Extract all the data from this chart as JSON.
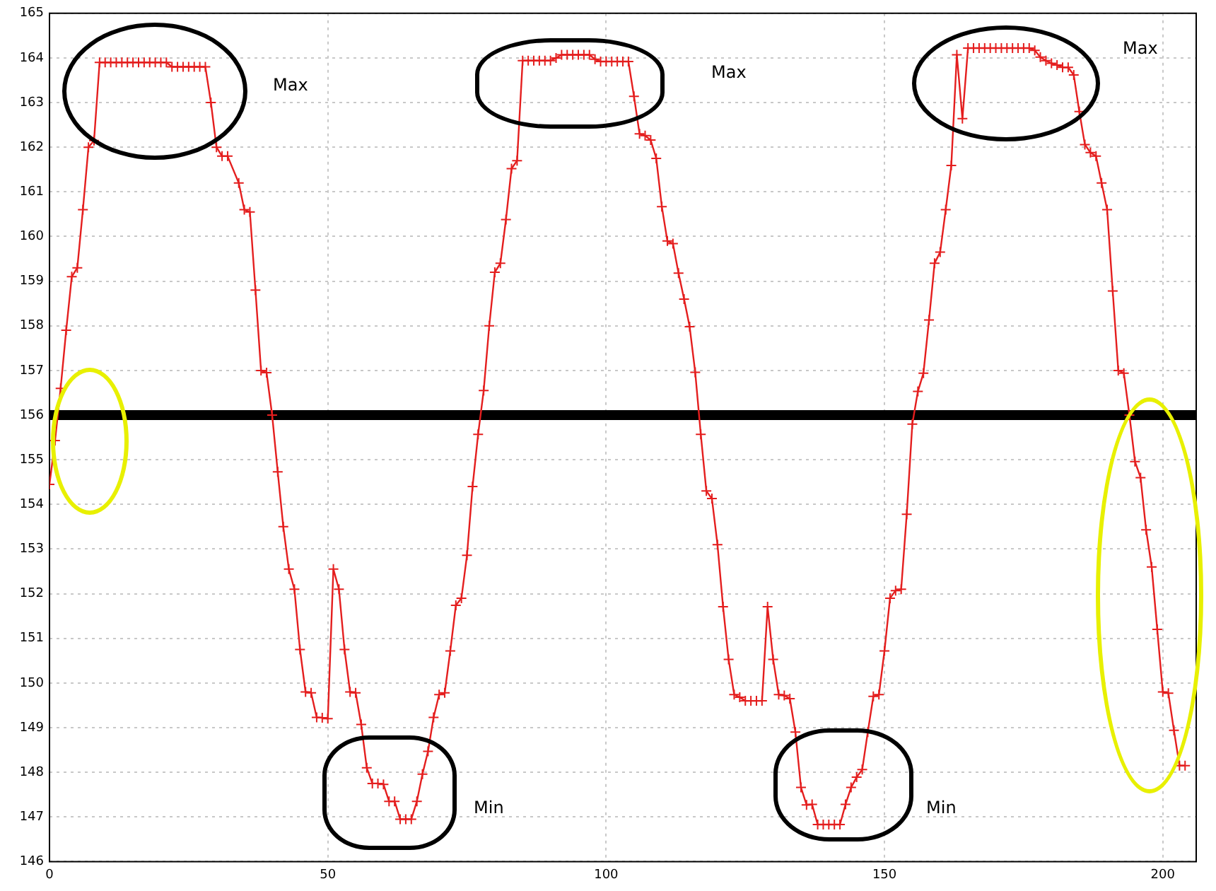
{
  "chart_data": {
    "type": "line",
    "marker": "cross",
    "grid": true,
    "legend": false,
    "xlim": [
      0,
      206
    ],
    "xticks": [
      0,
      50,
      100,
      150,
      200
    ],
    "ylim": [
      146,
      165
    ],
    "yticks": [
      146,
      147,
      148,
      149,
      150,
      151,
      152,
      153,
      154,
      155,
      156,
      157,
      158,
      159,
      160,
      161,
      162,
      163,
      164,
      165
    ],
    "ref_lines": [
      {
        "axis": "y",
        "value": 156,
        "color": "#000000"
      }
    ],
    "annotations": [
      "Max",
      "Max",
      "Max",
      "Min",
      "Min"
    ],
    "series": [
      {
        "color": "#e41e1e",
        "x": [
          0,
          1,
          2,
          3,
          4,
          5,
          6,
          7,
          8,
          9,
          10,
          11,
          12,
          13,
          14,
          15,
          16,
          17,
          18,
          19,
          20,
          21,
          22,
          23,
          24,
          25,
          26,
          27,
          28,
          29,
          30,
          31,
          32,
          34,
          35,
          36,
          37,
          38,
          39,
          40,
          41,
          42,
          43,
          44,
          45,
          46,
          47,
          48,
          49,
          50,
          51,
          52,
          53,
          54,
          55,
          56,
          57,
          58,
          59,
          60,
          61,
          62,
          63,
          64,
          65,
          66,
          67,
          68,
          69,
          70,
          71,
          72,
          73,
          74,
          75,
          76,
          77,
          78,
          79,
          80,
          81,
          82,
          83,
          84,
          85,
          86,
          87,
          88,
          89,
          90,
          91,
          92,
          93,
          94,
          95,
          96,
          97,
          98,
          99,
          100,
          101,
          102,
          103,
          104,
          105,
          106,
          107,
          108,
          109,
          110,
          111,
          112,
          113,
          114,
          115,
          116,
          117,
          118,
          119,
          120,
          121,
          122,
          123,
          124,
          125,
          126,
          127,
          128,
          129,
          130,
          131,
          132,
          133,
          134,
          135,
          136,
          137,
          138,
          139,
          140,
          141,
          142,
          143,
          144,
          145,
          146,
          147,
          148,
          149,
          150,
          151,
          152,
          153,
          154,
          155,
          156,
          157,
          158,
          159,
          160,
          161,
          162,
          163,
          164,
          165,
          166,
          167,
          168,
          169,
          170,
          171,
          172,
          173,
          174,
          175,
          176,
          177,
          178,
          179,
          180,
          181,
          182,
          183,
          184,
          185,
          186,
          187,
          188,
          189,
          190,
          191,
          192,
          193,
          194,
          195,
          196,
          197,
          198,
          199,
          200,
          201,
          202,
          203,
          204
        ],
        "values": [
          154.45,
          155.43,
          156.6,
          157.9,
          159.1,
          159.3,
          160.6,
          162.0,
          162.15,
          163.9,
          163.9,
          163.9,
          163.9,
          163.9,
          163.9,
          163.9,
          163.9,
          163.9,
          163.9,
          163.9,
          163.9,
          163.9,
          163.8,
          163.8,
          163.8,
          163.8,
          163.8,
          163.8,
          163.8,
          163.0,
          162.0,
          161.8,
          161.8,
          161.2,
          160.6,
          160.55,
          158.8,
          157.0,
          156.95,
          156.0,
          154.73,
          153.5,
          152.55,
          152.1,
          150.75,
          149.8,
          149.78,
          149.23,
          149.22,
          149.2,
          152.55,
          152.1,
          150.75,
          149.8,
          149.78,
          149.07,
          148.1,
          147.75,
          147.75,
          147.73,
          147.35,
          147.35,
          146.95,
          146.95,
          146.95,
          147.35,
          147.96,
          148.47,
          149.23,
          149.74,
          149.78,
          150.72,
          151.74,
          151.9,
          152.86,
          154.4,
          155.57,
          156.55,
          158.0,
          159.2,
          159.4,
          160.38,
          161.52,
          161.7,
          163.94,
          163.94,
          163.94,
          163.94,
          163.94,
          163.94,
          164.0,
          164.07,
          164.07,
          164.07,
          164.07,
          164.07,
          164.07,
          163.97,
          163.92,
          163.92,
          163.92,
          163.92,
          163.92,
          163.92,
          163.14,
          162.3,
          162.26,
          162.16,
          161.75,
          160.67,
          159.9,
          159.84,
          159.18,
          158.6,
          157.98,
          156.96,
          155.57,
          154.3,
          154.13,
          153.1,
          151.71,
          150.53,
          149.74,
          149.68,
          149.6,
          149.6,
          149.6,
          149.6,
          151.71,
          150.53,
          149.74,
          149.72,
          149.65,
          148.9,
          147.66,
          147.27,
          147.28,
          146.83,
          146.83,
          146.83,
          146.83,
          146.83,
          147.28,
          147.66,
          147.89,
          148.06,
          148.9,
          149.7,
          149.74,
          150.72,
          151.9,
          152.07,
          152.1,
          153.78,
          155.8,
          156.53,
          156.94,
          158.13,
          159.4,
          159.65,
          160.6,
          161.59,
          164.07,
          162.64,
          164.22,
          164.22,
          164.22,
          164.22,
          164.22,
          164.22,
          164.22,
          164.22,
          164.22,
          164.22,
          164.22,
          164.22,
          164.17,
          164.02,
          163.94,
          163.88,
          163.84,
          163.79,
          163.79,
          163.62,
          162.8,
          162.06,
          161.88,
          161.8,
          161.2,
          160.6,
          158.78,
          157.0,
          156.94,
          156.0,
          154.96,
          154.6,
          153.43,
          152.6,
          151.2,
          149.8,
          149.77,
          148.94,
          148.15,
          148.15
        ]
      }
    ]
  }
}
